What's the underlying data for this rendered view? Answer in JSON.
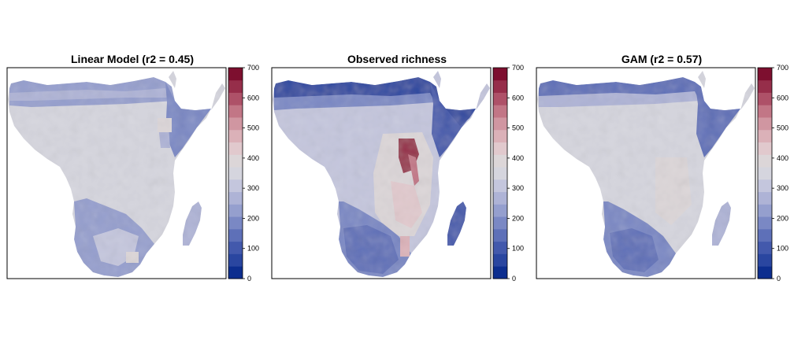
{
  "panels": [
    {
      "title": "Linear Model (r2 = 0.45)",
      "variant": "linear"
    },
    {
      "title": "Observed richness",
      "variant": "observed"
    },
    {
      "title": "GAM (r2 = 0.57)",
      "variant": "gam"
    }
  ],
  "colorbar": {
    "ticks": [
      "0",
      "100",
      "200",
      "300",
      "400",
      "500",
      "600",
      "700"
    ],
    "min": 0,
    "max": 700,
    "colors": [
      "#0d2e8f",
      "#2a46a0",
      "#4359ac",
      "#5e70b8",
      "#7a88c4",
      "#959fce",
      "#aeb3d6",
      "#c4c6dd",
      "#d5d5de",
      "#dcd6d8",
      "#e1c9cd",
      "#dbb1b8",
      "#d096a1",
      "#c27686",
      "#ae5168",
      "#962e4a",
      "#7d0f2f"
    ]
  }
}
